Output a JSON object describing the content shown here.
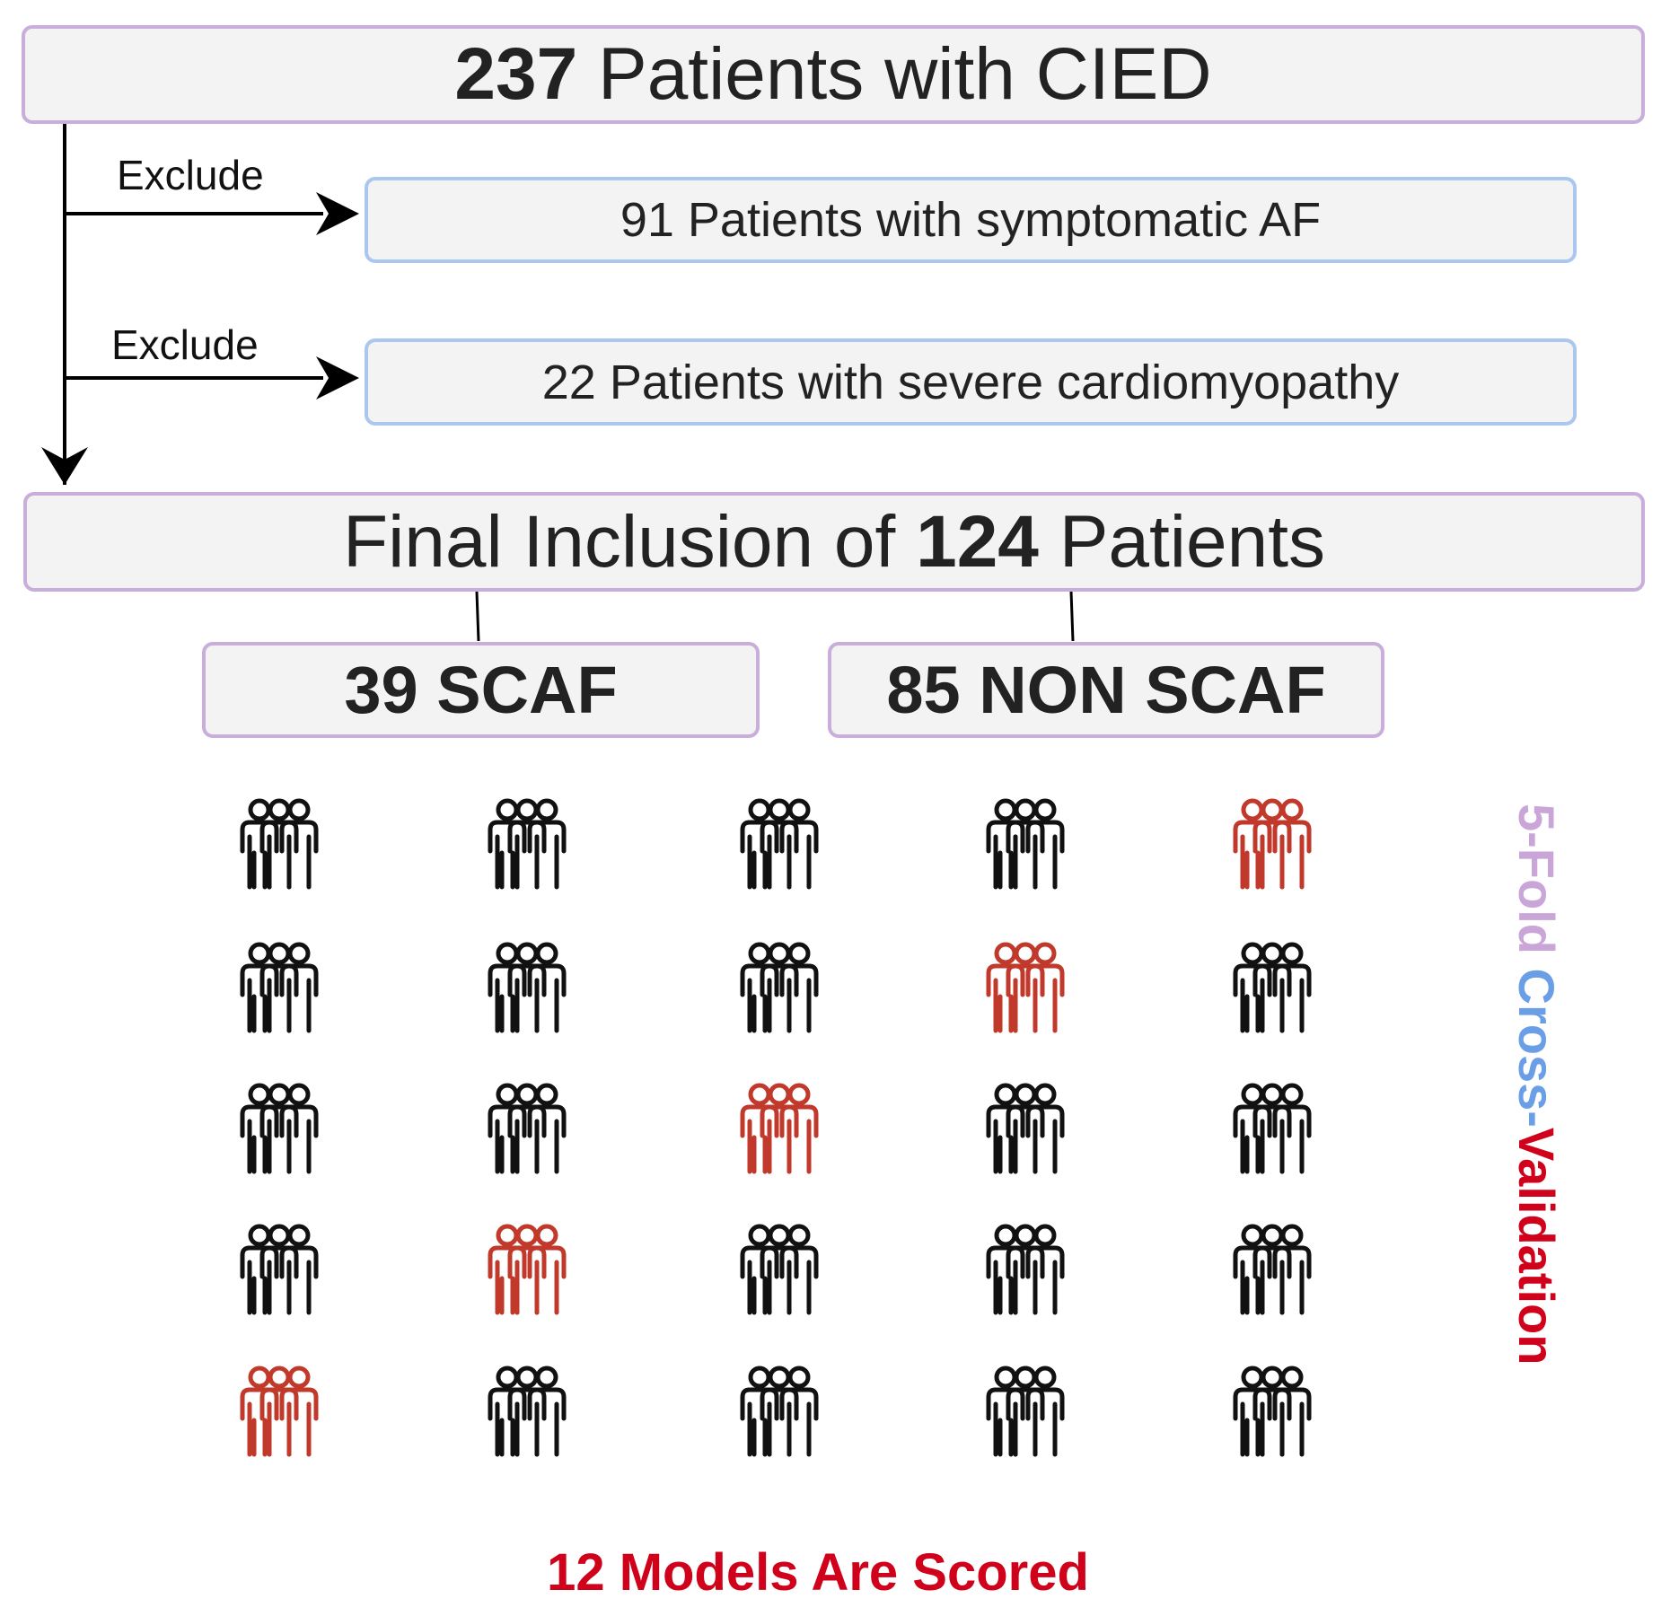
{
  "top_box": {
    "count": "237",
    "label": " Patients with CIED"
  },
  "exclusions": [
    {
      "arrow_label": "Exclude",
      "box_text": "91 Patients with symptomatic AF"
    },
    {
      "arrow_label": "Exclude",
      "box_text": "22 Patients with severe cardiomyopathy"
    }
  ],
  "final_box": {
    "prefix": "Final Inclusion of ",
    "count": "124",
    "suffix": " Patients"
  },
  "groups": [
    {
      "label": "39 SCAF"
    },
    {
      "label": "85 NON SCAF"
    }
  ],
  "folds": {
    "rows": 5,
    "cols": 5,
    "validation_cells": [
      [
        0,
        4
      ],
      [
        1,
        3
      ],
      [
        2,
        2
      ],
      [
        3,
        1
      ],
      [
        4,
        0
      ]
    ],
    "icon": "people-group-icon"
  },
  "side_label": {
    "part1": "5-Fold ",
    "part2": "Cross-",
    "part3": "Validation"
  },
  "footer": "12 Models Are Scored",
  "colors": {
    "box_bg": "#f3f3f3",
    "purple_border": "#c9aedb",
    "blue_border": "#a9c7ef",
    "validation_red": "#c0392b",
    "footer_red": "#d0021b",
    "fold_lavender": "#c9a5d8",
    "cross_blue": "#6a9ee6",
    "icon_black": "#111111"
  }
}
